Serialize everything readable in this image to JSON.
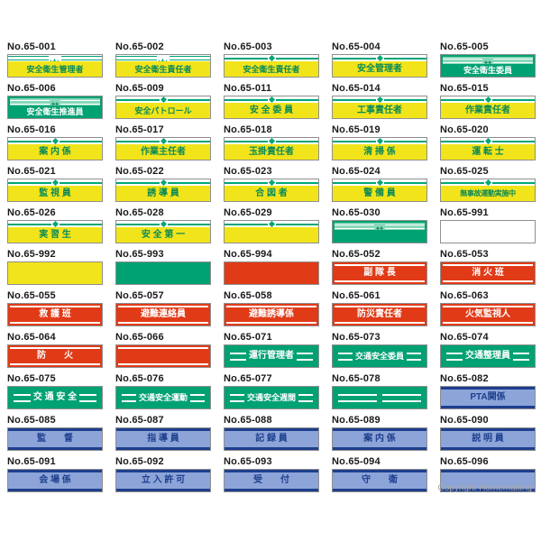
{
  "page": {
    "copyright": "Copyright Homemaking"
  },
  "colors": {
    "yellow": "#f2e41a",
    "green": "#00a173",
    "red": "#e13a17",
    "blue_fill": "#8ca4d8",
    "navy": "#1e3f8e",
    "green_accent": "#00a578",
    "border_gray": "#8f8f8f"
  },
  "items": [
    {
      "no": "No.65-001",
      "text": "安全衛生管理者",
      "style": "yellow_cross"
    },
    {
      "no": "No.65-002",
      "text": "安全衛生責任者",
      "style": "yellow_cross"
    },
    {
      "no": "No.65-003",
      "text": "安全衛生責任者",
      "style": "yellow_diamond"
    },
    {
      "no": "No.65-004",
      "text": "安全管理者",
      "style": "yellow_diamond"
    },
    {
      "no": "No.65-005",
      "text": "安全衛生委員",
      "style": "green_cross"
    },
    {
      "no": "No.65-006",
      "text": "安全衛生推進員",
      "style": "green_cross"
    },
    {
      "no": "No.65-009",
      "text": "安全パトロール",
      "style": "yellow_diamond"
    },
    {
      "no": "No.65-011",
      "text": "安 全 委 員",
      "style": "yellow_diamond"
    },
    {
      "no": "No.65-014",
      "text": "工事責任者",
      "style": "yellow_diamond"
    },
    {
      "no": "No.65-015",
      "text": "作業責任者",
      "style": "yellow_diamond"
    },
    {
      "no": "No.65-016",
      "text": "案 内 係",
      "style": "yellow_diamond"
    },
    {
      "no": "No.65-017",
      "text": "作業主任者",
      "style": "yellow_diamond"
    },
    {
      "no": "No.65-018",
      "text": "玉掛責任者",
      "style": "yellow_diamond"
    },
    {
      "no": "No.65-019",
      "text": "清 掃 係",
      "style": "yellow_diamond"
    },
    {
      "no": "No.65-020",
      "text": "運 転 士",
      "style": "yellow_diamond"
    },
    {
      "no": "No.65-021",
      "text": "監 視 員",
      "style": "yellow_diamond"
    },
    {
      "no": "No.65-022",
      "text": "誘 導 員",
      "style": "yellow_diamond"
    },
    {
      "no": "No.65-023",
      "text": "合 図 者",
      "style": "yellow_diamond"
    },
    {
      "no": "No.65-024",
      "text": "警 備 員",
      "style": "yellow_diamond"
    },
    {
      "no": "No.65-025",
      "text": "無事故運動実施中",
      "style": "yellow_diamond"
    },
    {
      "no": "No.65-026",
      "text": "実 習 生",
      "style": "yellow_diamond"
    },
    {
      "no": "No.65-028",
      "text": "安 全 第 一",
      "style": "yellow_diamond"
    },
    {
      "no": "No.65-029",
      "text": "",
      "style": "yellow_diamond"
    },
    {
      "no": "No.65-030",
      "text": "",
      "style": "green_cross"
    },
    {
      "no": "No.65-991",
      "text": "",
      "style": "white_plain"
    },
    {
      "no": "No.65-992",
      "text": "",
      "style": "yellow_plain"
    },
    {
      "no": "No.65-993",
      "text": "",
      "style": "green_plain"
    },
    {
      "no": "No.65-994",
      "text": "",
      "style": "red_plain"
    },
    {
      "no": "No.65-052",
      "text": "副 隊 長",
      "style": "red_lines"
    },
    {
      "no": "No.65-053",
      "text": "消 火 班",
      "style": "red_lines"
    },
    {
      "no": "No.65-055",
      "text": "救 護 班",
      "style": "red_lines"
    },
    {
      "no": "No.65-057",
      "text": "避難連絡員",
      "style": "red_lines"
    },
    {
      "no": "No.65-058",
      "text": "避難誘導係",
      "style": "red_lines"
    },
    {
      "no": "No.65-061",
      "text": "防災責任者",
      "style": "red_lines"
    },
    {
      "no": "No.65-063",
      "text": "火気監視人",
      "style": "red_lines"
    },
    {
      "no": "No.65-064",
      "text": "防　　火",
      "style": "red_lines"
    },
    {
      "no": "No.65-066",
      "text": "",
      "style": "red_lines"
    },
    {
      "no": "No.65-071",
      "text": "運行管理者",
      "style": "green_lines"
    },
    {
      "no": "No.65-073",
      "text": "交通安全委員",
      "style": "green_lines"
    },
    {
      "no": "No.65-074",
      "text": "交通整理員",
      "style": "green_lines"
    },
    {
      "no": "No.65-075",
      "text": "交 通 安 全",
      "style": "green_lines"
    },
    {
      "no": "No.65-076",
      "text": "交通安全運動",
      "style": "green_lines"
    },
    {
      "no": "No.65-077",
      "text": "交通安全週間",
      "style": "green_lines"
    },
    {
      "no": "No.65-078",
      "text": "",
      "style": "green_lines"
    },
    {
      "no": "No.65-082",
      "text": "PTA関係",
      "style": "blue"
    },
    {
      "no": "No.65-085",
      "text": "監　　督",
      "style": "blue"
    },
    {
      "no": "No.65-087",
      "text": "指 導 員",
      "style": "blue"
    },
    {
      "no": "No.65-088",
      "text": "記 録 員",
      "style": "blue"
    },
    {
      "no": "No.65-089",
      "text": "案 内 係",
      "style": "blue"
    },
    {
      "no": "No.65-090",
      "text": "説 明 員",
      "style": "blue"
    },
    {
      "no": "No.65-091",
      "text": "会 場 係",
      "style": "blue"
    },
    {
      "no": "No.65-092",
      "text": "立 入 許 可",
      "style": "blue"
    },
    {
      "no": "No.65-093",
      "text": "受　　付",
      "style": "blue"
    },
    {
      "no": "No.65-094",
      "text": "守　　衛",
      "style": "blue"
    },
    {
      "no": "No.65-096",
      "text": "",
      "style": "blue"
    }
  ]
}
